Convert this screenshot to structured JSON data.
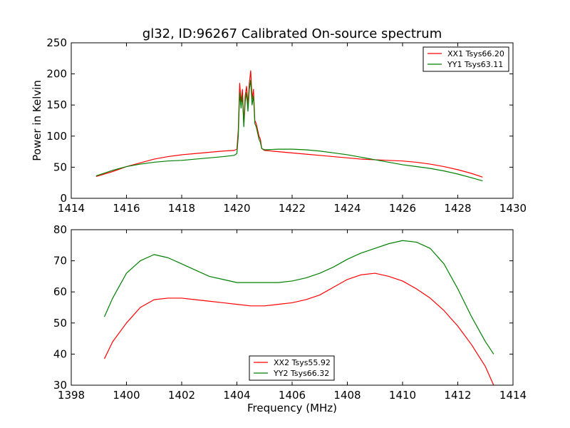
{
  "chart_data": [
    {
      "type": "line",
      "title": "gl32, ID:96267 Calibrated On-source spectrum",
      "xlabel": "",
      "ylabel": "Power in Kelvin",
      "xlim": [
        1414,
        1430
      ],
      "ylim": [
        0,
        250
      ],
      "xticks": [
        "1414",
        "1416",
        "1418",
        "1420",
        "1422",
        "1424",
        "1426",
        "1428",
        "1430"
      ],
      "yticks": [
        "0",
        "50",
        "100",
        "150",
        "200",
        "250"
      ],
      "legend_position": "top-right",
      "grid": false,
      "series": [
        {
          "name": "XX1 Tsys66.20",
          "color": "#ff0000",
          "x": [
            1414.9,
            1415.5,
            1416.0,
            1416.5,
            1417.0,
            1417.5,
            1418.0,
            1418.5,
            1419.0,
            1419.5,
            1419.9,
            1420.0,
            1420.05,
            1420.1,
            1420.15,
            1420.2,
            1420.25,
            1420.3,
            1420.35,
            1420.4,
            1420.45,
            1420.5,
            1420.55,
            1420.6,
            1420.65,
            1420.7,
            1420.75,
            1420.8,
            1420.85,
            1420.9,
            1421.0,
            1421.5,
            1422.0,
            1422.5,
            1423.0,
            1423.5,
            1424.0,
            1424.5,
            1425.0,
            1425.5,
            1426.0,
            1426.5,
            1427.0,
            1427.5,
            1428.0,
            1428.5,
            1428.9
          ],
          "y": [
            35,
            43,
            51,
            57,
            63,
            67,
            70,
            72,
            74,
            76,
            77,
            79,
            110,
            185,
            155,
            175,
            120,
            165,
            180,
            150,
            185,
            205,
            160,
            175,
            125,
            120,
            110,
            100,
            95,
            80,
            77,
            75,
            73,
            71,
            69,
            67,
            65,
            63,
            62,
            61,
            60,
            58,
            55,
            51,
            46,
            40,
            34
          ]
        },
        {
          "name": "YY1 Tsys63.11",
          "color": "#008000",
          "x": [
            1414.9,
            1415.5,
            1416.0,
            1416.5,
            1417.0,
            1417.5,
            1418.0,
            1418.5,
            1419.0,
            1419.5,
            1419.9,
            1420.0,
            1420.05,
            1420.1,
            1420.15,
            1420.2,
            1420.25,
            1420.3,
            1420.35,
            1420.4,
            1420.45,
            1420.5,
            1420.55,
            1420.6,
            1420.65,
            1420.7,
            1420.75,
            1420.8,
            1420.85,
            1420.9,
            1421.0,
            1421.5,
            1422.0,
            1422.5,
            1423.0,
            1423.5,
            1424.0,
            1424.5,
            1425.0,
            1425.5,
            1426.0,
            1426.5,
            1427.0,
            1427.5,
            1428.0,
            1428.5,
            1428.9
          ],
          "y": [
            36,
            45,
            51,
            55,
            58,
            60,
            61,
            63,
            65,
            67,
            69,
            72,
            100,
            170,
            145,
            165,
            115,
            155,
            170,
            140,
            175,
            190,
            150,
            165,
            120,
            115,
            105,
            95,
            90,
            80,
            78,
            79,
            79,
            78,
            76,
            73,
            70,
            66,
            62,
            58,
            54,
            51,
            48,
            44,
            39,
            33,
            28
          ]
        }
      ]
    },
    {
      "type": "line",
      "title": "",
      "xlabel": "Frequency (MHz)",
      "ylabel": "",
      "xlim": [
        1398,
        1414
      ],
      "ylim": [
        30,
        80
      ],
      "xticks": [
        "1398",
        "1400",
        "1402",
        "1404",
        "1406",
        "1408",
        "1410",
        "1412",
        "1414"
      ],
      "yticks": [
        "30",
        "40",
        "50",
        "60",
        "70",
        "80"
      ],
      "legend_position": "bottom-center",
      "grid": false,
      "series": [
        {
          "name": "XX2 Tsys55.92",
          "color": "#ff0000",
          "x": [
            1399.2,
            1399.5,
            1400.0,
            1400.5,
            1401.0,
            1401.5,
            1402.0,
            1402.5,
            1403.0,
            1403.5,
            1404.0,
            1404.5,
            1405.0,
            1405.5,
            1406.0,
            1406.5,
            1407.0,
            1407.5,
            1408.0,
            1408.5,
            1409.0,
            1409.5,
            1410.0,
            1410.5,
            1411.0,
            1411.5,
            1412.0,
            1412.5,
            1413.0,
            1413.3
          ],
          "y": [
            38.5,
            44,
            50,
            55,
            57.5,
            58,
            58,
            57.5,
            57,
            56.5,
            56,
            55.5,
            55.5,
            56,
            56.5,
            57.5,
            59,
            61.5,
            64,
            65.5,
            66,
            65,
            63.5,
            61,
            58,
            54,
            49,
            43,
            36,
            30
          ]
        },
        {
          "name": "YY2 Tsys66.32",
          "color": "#008000",
          "x": [
            1399.2,
            1399.5,
            1400.0,
            1400.5,
            1401.0,
            1401.5,
            1402.0,
            1402.5,
            1403.0,
            1403.5,
            1404.0,
            1404.5,
            1405.0,
            1405.5,
            1406.0,
            1406.5,
            1407.0,
            1407.5,
            1408.0,
            1408.5,
            1409.0,
            1409.5,
            1410.0,
            1410.5,
            1411.0,
            1411.5,
            1412.0,
            1412.5,
            1413.0,
            1413.3
          ],
          "y": [
            52,
            58,
            66,
            70,
            72,
            71,
            69,
            67,
            65,
            64,
            63,
            63,
            63,
            63,
            63.5,
            64.5,
            66,
            68,
            70.5,
            72.5,
            74,
            75.5,
            76.5,
            76,
            74,
            69,
            61,
            52,
            44,
            40
          ]
        }
      ]
    }
  ]
}
